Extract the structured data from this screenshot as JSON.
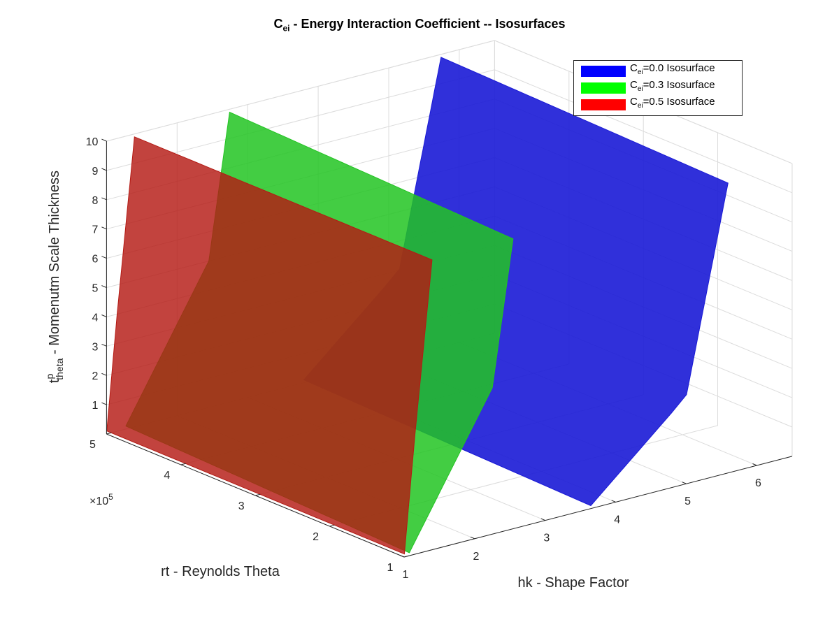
{
  "chart_data": {
    "type": "isosurface-3d",
    "title_main": "C",
    "title_sub": "ei",
    "title_rest": " - Energy Interaction Coefficient -- Isosurfaces",
    "x_axis": {
      "label": "hk - Shape Factor",
      "ticks": [
        1,
        2,
        3,
        4,
        5,
        6
      ],
      "range": [
        1,
        6.5
      ]
    },
    "y_axis": {
      "label": "rt - Reynolds Theta",
      "ticks": [
        1,
        2,
        3,
        4,
        5
      ],
      "exponent_label": "×10",
      "exponent_power": "5",
      "range": [
        1,
        5
      ]
    },
    "z_axis": {
      "label_main": "t",
      "label_sup": "p",
      "label_sub": "theta",
      "label_rest": " - Momenutm Scale Thickness",
      "ticks": [
        1,
        2,
        3,
        4,
        5,
        6,
        7,
        8,
        9,
        10
      ],
      "range": [
        0,
        10
      ]
    },
    "grid": true,
    "legend_position": "top-right",
    "series": [
      {
        "name_main": "C",
        "name_sub": "ei",
        "name_rest": "=0.0 Isosurface",
        "level": 0.0,
        "color": "#0000ff"
      },
      {
        "name_main": "C",
        "name_sub": "ei",
        "name_rest": "=0.3 Isosurface",
        "level": 0.3,
        "color": "#00ff00"
      },
      {
        "name_main": "C",
        "name_sub": "ei",
        "name_rest": "=0.5 Isosurface",
        "level": 0.5,
        "color": "#ff0000"
      }
    ]
  }
}
